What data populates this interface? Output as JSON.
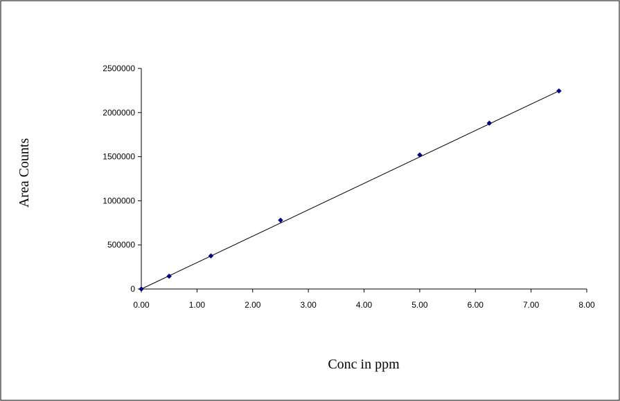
{
  "chart_data": {
    "type": "scatter",
    "title": "",
    "xlabel": "Conc in ppm",
    "ylabel": "Area Counts",
    "xlim": [
      0,
      8
    ],
    "ylim": [
      0,
      2500000
    ],
    "x_ticks": [
      "0.00",
      "1.00",
      "2.00",
      "3.00",
      "4.00",
      "5.00",
      "6.00",
      "7.00",
      "8.00"
    ],
    "y_ticks": [
      "0",
      "500000",
      "1000000",
      "1500000",
      "2000000",
      "2500000"
    ],
    "grid": false,
    "legend": "none",
    "series": [
      {
        "x": [
          0,
          0.5,
          1.25,
          2.5,
          5.0,
          6.25,
          7.5
        ],
        "y": [
          0,
          145000,
          375000,
          780000,
          1520000,
          1880000,
          2245000
        ],
        "marker": "diamond",
        "color": "#000080"
      }
    ],
    "trendline": {
      "type": "linear",
      "x": [
        0,
        7.5
      ],
      "y": [
        0,
        2245000
      ],
      "color": "#000000"
    }
  }
}
